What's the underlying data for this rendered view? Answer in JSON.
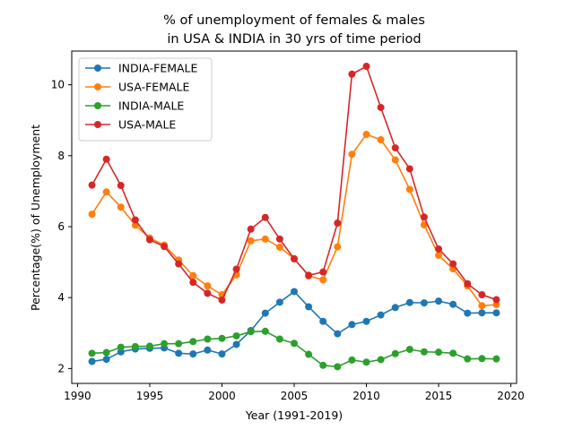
{
  "chart_data": {
    "type": "line",
    "title_line1": "% of unemployment of females & males",
    "title_line2": "in USA & INDIA in 30 yrs of time period",
    "xlabel": "Year (1991-2019)",
    "ylabel": "Percentage(%) of Unemployment",
    "xlim": [
      1989.6,
      2020.4
    ],
    "ylim": [
      1.58,
      10.95
    ],
    "xticks": [
      1990,
      1995,
      2000,
      2005,
      2010,
      2015,
      2020
    ],
    "yticks": [
      2,
      4,
      6,
      8,
      10
    ],
    "grid": false,
    "legend_position": "top-left",
    "x": [
      1991,
      1992,
      1993,
      1994,
      1995,
      1996,
      1997,
      1998,
      1999,
      2000,
      2001,
      2002,
      2003,
      2004,
      2005,
      2006,
      2007,
      2008,
      2009,
      2010,
      2011,
      2012,
      2013,
      2014,
      2015,
      2016,
      2017,
      2018,
      2019
    ],
    "series": [
      {
        "name": "INDIA-FEMALE",
        "color": "#1f77b4",
        "values": [
          2.2,
          2.26,
          2.47,
          2.55,
          2.57,
          2.58,
          2.43,
          2.41,
          2.52,
          2.41,
          2.68,
          3.07,
          3.56,
          3.87,
          4.17,
          3.74,
          3.33,
          2.98,
          3.24,
          3.33,
          3.51,
          3.72,
          3.86,
          3.85,
          3.9,
          3.81,
          3.56,
          3.57,
          3.57
        ]
      },
      {
        "name": "USA-FEMALE",
        "color": "#ff7f0e",
        "values": [
          6.35,
          6.98,
          6.55,
          6.04,
          5.68,
          5.48,
          5.06,
          4.62,
          4.33,
          4.08,
          4.64,
          5.6,
          5.65,
          5.42,
          5.1,
          4.61,
          4.5,
          5.43,
          8.04,
          8.6,
          8.45,
          7.88,
          7.05,
          6.05,
          5.19,
          4.81,
          4.33,
          3.77,
          3.8
        ]
      },
      {
        "name": "INDIA-MALE",
        "color": "#2ca02c",
        "values": [
          2.43,
          2.45,
          2.6,
          2.62,
          2.63,
          2.7,
          2.7,
          2.76,
          2.83,
          2.85,
          2.92,
          3.04,
          3.05,
          2.83,
          2.71,
          2.4,
          2.09,
          2.05,
          2.24,
          2.18,
          2.25,
          2.42,
          2.54,
          2.47,
          2.46,
          2.43,
          2.27,
          2.28,
          2.27
        ]
      },
      {
        "name": "USA-MALE",
        "color": "#d62728",
        "values": [
          7.17,
          7.9,
          7.16,
          6.19,
          5.63,
          5.44,
          4.95,
          4.43,
          4.12,
          3.93,
          4.8,
          5.93,
          6.26,
          5.65,
          5.09,
          4.63,
          4.72,
          6.1,
          10.3,
          10.52,
          9.36,
          8.22,
          7.63,
          6.27,
          5.37,
          4.95,
          4.39,
          4.08,
          3.94
        ]
      }
    ]
  }
}
